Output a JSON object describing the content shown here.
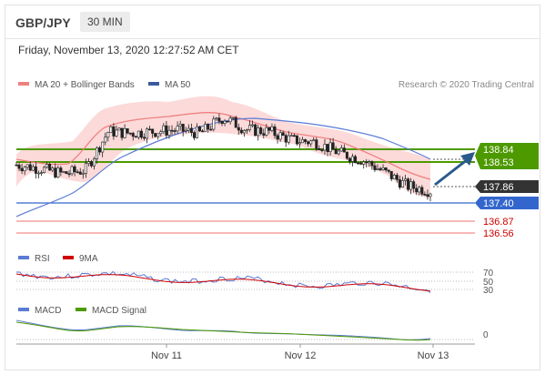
{
  "header": {
    "pair": "GBP/JPY",
    "timeframe": "30 MIN",
    "datetime": "Friday, November 13, 2020 12:27:52 AM CET"
  },
  "legend": {
    "ma20": "MA 20 + Bollinger Bands",
    "ma50": "MA 50",
    "credit": "Research © 2020 Trading Central",
    "rsi": "RSI",
    "rsi_ma": "9MA",
    "macd": "MACD",
    "macd_signal": "MACD Signal"
  },
  "colors": {
    "ma20": "#f08080",
    "band_fill": "#fbd3d3",
    "ma50": "#5b7bd5",
    "resistance": "#4d9900",
    "pivot": "#3366cc",
    "support": "#f07070",
    "current": "#333333",
    "arrow": "#2a5a8c",
    "rsi": "#5b7bd5",
    "rsi_ma": "#d00000",
    "macd": "#5b7bd5",
    "macd_signal": "#4d9900"
  },
  "levels": [
    {
      "label": "138.84",
      "value": 138.84,
      "type": "resistance"
    },
    {
      "label": "138.53",
      "value": 138.53,
      "type": "resistance"
    },
    {
      "label": "137.86",
      "value": 137.86,
      "type": "current"
    },
    {
      "label": "137.40",
      "value": 137.4,
      "type": "pivot"
    },
    {
      "label": "136.87",
      "value": 136.87,
      "type": "support"
    },
    {
      "label": "136.56",
      "value": 136.56,
      "type": "support"
    }
  ],
  "rsi_levels": [
    "70",
    "50",
    "30"
  ],
  "macd_levels": [
    "0"
  ],
  "x_labels": [
    "Nov 11",
    "Nov 12",
    "Nov 13"
  ],
  "chart_data": {
    "type": "line",
    "title": "GBP/JPY 30 MIN",
    "x_ticks": [
      "Nov 11",
      "Nov 12",
      "Nov 13"
    ],
    "price_series": [
      {
        "name": "MA 20 + Bollinger Bands",
        "values": [
          138.5,
          138.45,
          138.4,
          138.55,
          138.9,
          139.25,
          139.45,
          139.55,
          139.6,
          139.7,
          139.6,
          139.45,
          139.3,
          139.2,
          139.05,
          138.9,
          138.75,
          138.5,
          138.2
        ]
      },
      {
        "name": "MA 50",
        "values": [
          137.3,
          137.55,
          137.85,
          138.15,
          138.45,
          138.75,
          139.0,
          139.2,
          139.4,
          139.55,
          139.6,
          139.55,
          139.5,
          139.4,
          139.3,
          139.15,
          139.0,
          138.8,
          138.6
        ]
      }
    ],
    "price_close": [
      138.6,
      138.5,
      138.35,
      138.45,
      139.55,
      139.5,
      139.55,
      139.6,
      139.5,
      139.95,
      139.6,
      139.55,
      139.3,
      139.25,
      138.95,
      138.75,
      138.4,
      138.0,
      137.86
    ],
    "levels": {
      "resistance": [
        138.84,
        138.53
      ],
      "current": 137.86,
      "pivot": 137.4,
      "support": [
        136.87,
        136.56
      ]
    },
    "rsi": {
      "levels": [
        70,
        50,
        30
      ]
    },
    "macd": {
      "levels": [
        0
      ]
    }
  }
}
